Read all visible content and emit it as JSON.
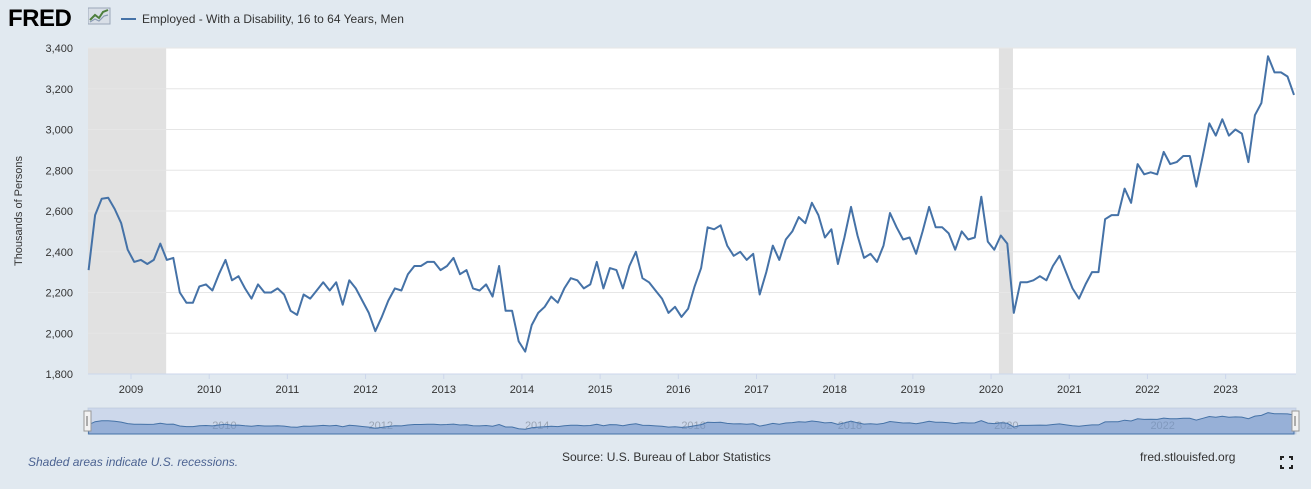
{
  "header": {
    "logo_text": "FRED",
    "legend_label": "Employed - With a Disability, 16 to 64 Years, Men",
    "series_color": "#4572a7"
  },
  "footer": {
    "recession_note": "Shaded areas indicate U.S. recessions.",
    "source": "Source: U.S. Bureau of Labor Statistics",
    "url": "fred.stlouisfed.org",
    "fullscreen_icon": "fullscreen-icon"
  },
  "chart_data": {
    "type": "line",
    "title": "Employed - With a Disability, 16 to 64 Years, Men",
    "ylabel": "Thousands of Persons",
    "xlabel": "",
    "ylim": [
      1800,
      3400
    ],
    "yticks": [
      1800,
      2000,
      2200,
      2400,
      2600,
      2800,
      3000,
      3200,
      3400
    ],
    "ytick_labels": [
      "1,800",
      "2,000",
      "2,200",
      "2,400",
      "2,600",
      "2,800",
      "3,000",
      "3,200",
      "3,400"
    ],
    "xlim": [
      2008.45,
      2023.9
    ],
    "xticks": [
      2009,
      2010,
      2011,
      2012,
      2013,
      2014,
      2015,
      2016,
      2017,
      2018,
      2019,
      2020,
      2021,
      2022,
      2023
    ],
    "xtick_labels": [
      "2009",
      "2010",
      "2011",
      "2012",
      "2013",
      "2014",
      "2015",
      "2016",
      "2017",
      "2018",
      "2019",
      "2020",
      "2021",
      "2022",
      "2023"
    ],
    "navigator_labels": [
      "2010",
      "2012",
      "2014",
      "2016",
      "2018",
      "2020",
      "2022"
    ],
    "recessions": [
      [
        2008.45,
        2009.45
      ],
      [
        2020.1,
        2020.28
      ]
    ],
    "grid": "horizontal",
    "series": [
      {
        "name": "Employed - With a Disability, 16 to 64 Years, Men",
        "start": 2008.458,
        "step": 0.0833333,
        "values": [
          2310,
          2580,
          2660,
          2665,
          2610,
          2540,
          2410,
          2350,
          2360,
          2340,
          2360,
          2440,
          2360,
          2370,
          2200,
          2150,
          2150,
          2230,
          2240,
          2210,
          2290,
          2360,
          2260,
          2280,
          2220,
          2170,
          2240,
          2200,
          2200,
          2220,
          2190,
          2110,
          2090,
          2190,
          2170,
          2210,
          2250,
          2210,
          2250,
          2140,
          2260,
          2220,
          2160,
          2100,
          2010,
          2080,
          2160,
          2220,
          2210,
          2290,
          2330,
          2330,
          2350,
          2350,
          2310,
          2330,
          2370,
          2290,
          2310,
          2220,
          2210,
          2240,
          2180,
          2330,
          2110,
          2110,
          1960,
          1910,
          2040,
          2100,
          2130,
          2180,
          2150,
          2220,
          2270,
          2260,
          2220,
          2240,
          2350,
          2220,
          2320,
          2310,
          2220,
          2330,
          2400,
          2270,
          2250,
          2210,
          2170,
          2100,
          2130,
          2080,
          2120,
          2230,
          2320,
          2520,
          2510,
          2530,
          2430,
          2380,
          2400,
          2360,
          2390,
          2190,
          2300,
          2430,
          2360,
          2460,
          2500,
          2570,
          2540,
          2640,
          2580,
          2470,
          2510,
          2340,
          2470,
          2620,
          2480,
          2370,
          2390,
          2350,
          2430,
          2590,
          2520,
          2460,
          2470,
          2390,
          2500,
          2620,
          2520,
          2520,
          2490,
          2410,
          2500,
          2460,
          2470,
          2670,
          2450,
          2410,
          2480,
          2440,
          2100,
          2250,
          2250,
          2260,
          2280,
          2260,
          2330,
          2380,
          2300,
          2220,
          2170,
          2240,
          2300,
          2300,
          2560,
          2580,
          2580,
          2710,
          2640,
          2830,
          2780,
          2790,
          2780,
          2890,
          2830,
          2840,
          2870,
          2870,
          2720,
          2870,
          3030,
          2970,
          3050,
          2970,
          3000,
          2980,
          2840,
          3070,
          3130,
          3360,
          3280,
          3280,
          3260,
          3170
        ]
      }
    ]
  }
}
